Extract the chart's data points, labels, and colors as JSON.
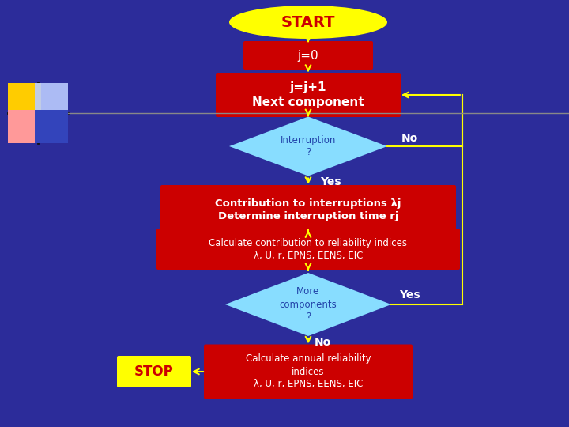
{
  "bg_color": "#2c2c9a",
  "title_text": "START",
  "title_fill": "#ffff00",
  "title_text_color": "#cc0000",
  "box_j0": {
    "text": "j=0",
    "fill": "#cc0000",
    "text_color": "#ffffff"
  },
  "box_jj1": {
    "text": "j=j+1\nNext component",
    "fill": "#cc0000",
    "text_color": "#ffffff"
  },
  "diamond1": {
    "text": "Interruption\n?",
    "fill": "#88ddff",
    "text_color": "#2244aa"
  },
  "no_label": "No",
  "yes_label1": "Yes",
  "box_contrib": {
    "text": "Contribution to interruptions λj\nDetermine interruption time rj",
    "fill": "#cc0000",
    "text_color": "#ffffff"
  },
  "box_calc": {
    "text": "Calculate contribution to reliability indices\nλ, U, r, EPNS, EENS, EIC",
    "fill": "#cc0000",
    "text_color": "#ffffff"
  },
  "diamond2": {
    "text": "More\ncomponents\n?",
    "fill": "#88ddff",
    "text_color": "#2244aa"
  },
  "yes_label2": "Yes",
  "no_label2": "No",
  "box_annual": {
    "text": "Calculate annual reliability\nindices\nλ, U, r, EPNS, EENS, EIC",
    "fill": "#cc0000",
    "text_color": "#ffffff"
  },
  "stop_text": "STOP",
  "stop_fill": "#ffff00",
  "stop_text_color": "#cc0000",
  "arrow_color": "#ffff00",
  "line_color": "#ffff00",
  "no_arrow_color": "#ffff00",
  "label_color": "#ffffff"
}
